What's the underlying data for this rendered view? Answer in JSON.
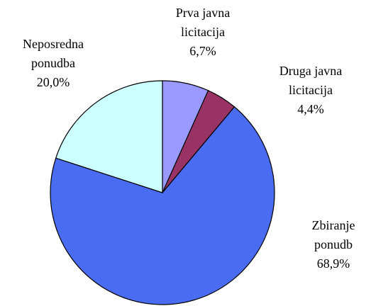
{
  "chart_data": {
    "type": "pie",
    "categories": [
      "Prva javna licitacija",
      "Druga javna licitacija",
      "Zbiranje ponudb",
      "Neposredna ponudba"
    ],
    "values": [
      6.7,
      4.4,
      68.9,
      20.0
    ],
    "value_labels": [
      "6,7%",
      "4,4%",
      "68,9%",
      "20,0%"
    ],
    "colors": [
      "#9999ff",
      "#993366",
      "#4a6cf0",
      "#ccffff"
    ]
  }
}
